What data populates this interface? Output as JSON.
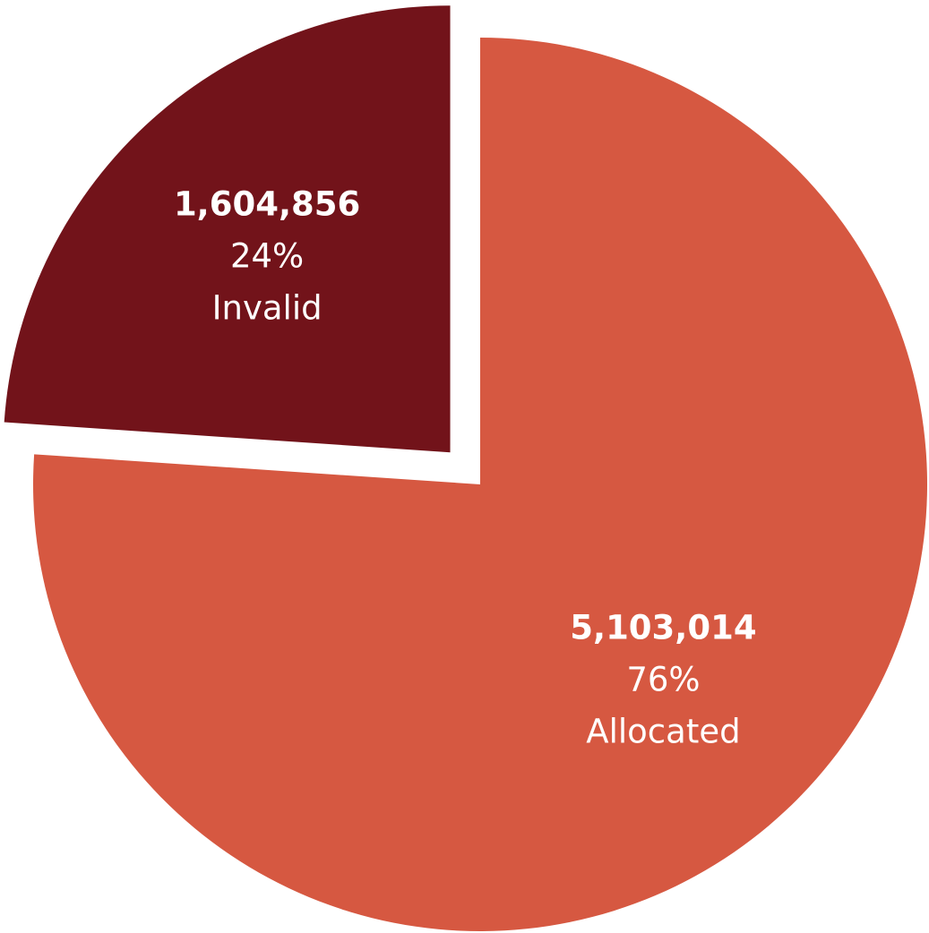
{
  "chart_data": {
    "type": "pie",
    "title": "",
    "slices": [
      {
        "label": "Allocated",
        "value": 5103014,
        "value_text": "5,103,014",
        "percent": 76,
        "percent_text": "76%",
        "color": "#D65841",
        "exploded": false
      },
      {
        "label": "Invalid",
        "value": 1604856,
        "value_text": "1,604,856",
        "percent": 24,
        "percent_text": "24%",
        "color": "#72131A",
        "exploded": true
      }
    ],
    "start_angle_deg": 0,
    "direction": "clockwise",
    "legend": "none",
    "data_labels": "value, percent, category inside slices"
  }
}
